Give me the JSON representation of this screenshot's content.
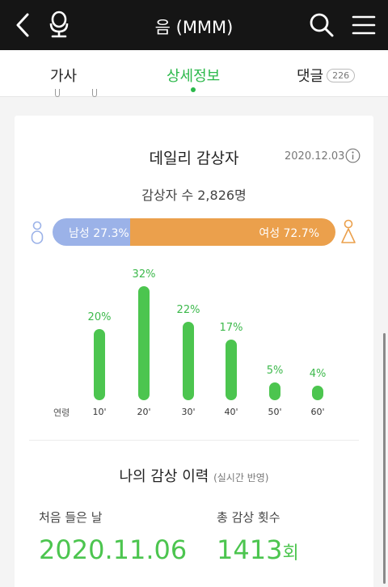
{
  "header": {
    "title": "음 (MMM)"
  },
  "tabs": {
    "lyrics": "가사",
    "detail": "상세정보",
    "comments": "댓글",
    "comments_count": "226"
  },
  "daily": {
    "title": "데일리 감상자",
    "date": "2020.12.03",
    "listeners": "감상자 수 2,826명"
  },
  "gender": {
    "male_label": "남성 27.3%",
    "male_value": 27.3,
    "female_label": "여성 72.7%",
    "female_value": 72.7,
    "male_color": "#9bb2e8",
    "female_color": "#eba04c"
  },
  "chart_data": {
    "type": "bar",
    "xlabel": "연령",
    "categories": [
      "10'",
      "20'",
      "30'",
      "40'",
      "50'",
      "60'"
    ],
    "values": [
      20,
      32,
      22,
      17,
      5,
      4
    ],
    "labels": [
      "20%",
      "32%",
      "22%",
      "17%",
      "5%",
      "4%"
    ],
    "color": "#4cc54f"
  },
  "history": {
    "title": "나의 감상 이력",
    "subtitle": "(실시간 반영)",
    "first_label": "처음 들은 날",
    "first_value": "2020.11.06",
    "count_label": "총 감상 횟수",
    "count_value": "1413",
    "count_unit": "회"
  },
  "icons": {
    "back": "back-arrow-icon",
    "mic": "mic-icon",
    "search": "search-icon",
    "menu": "menu-icon",
    "info": "info-icon",
    "male": "male-icon",
    "female": "female-icon"
  },
  "accent_color": "#2bb84a"
}
